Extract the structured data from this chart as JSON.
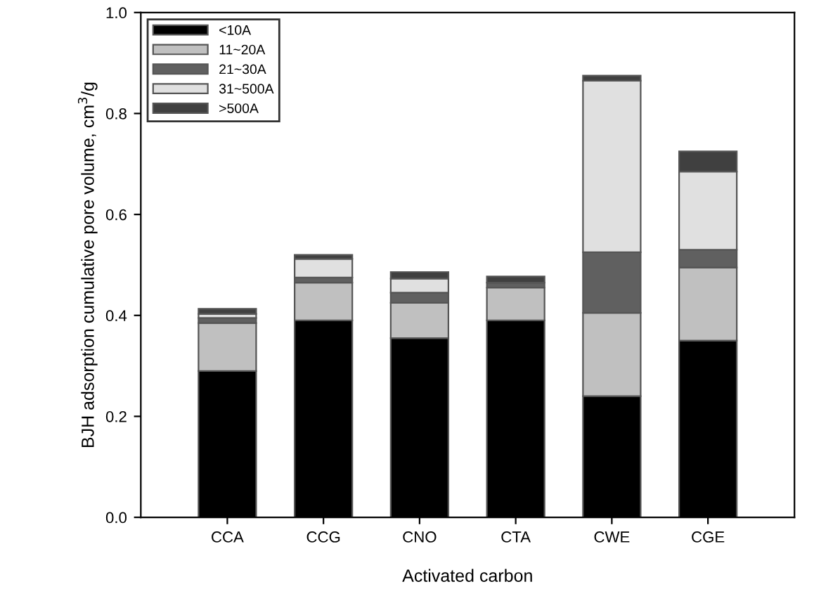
{
  "chart_data": {
    "type": "bar",
    "stacked": true,
    "xlabel": "Activated carbon",
    "ylabel": "BJH adsorption cumulative pore volume, cm$^{3}$/g",
    "categories": [
      "CCA",
      "CCG",
      "CNO",
      "CTA",
      "CWE",
      "CGE"
    ],
    "series": [
      {
        "name": "<10A",
        "color": "#000000",
        "values": [
          0.29,
          0.39,
          0.355,
          0.39,
          0.24,
          0.35
        ]
      },
      {
        "name": "11~20A",
        "color": "#c0c0c0",
        "values": [
          0.095,
          0.075,
          0.07,
          0.065,
          0.165,
          0.145
        ]
      },
      {
        "name": "21~30A",
        "color": "#606060",
        "values": [
          0.01,
          0.01,
          0.02,
          0.01,
          0.12,
          0.035
        ]
      },
      {
        "name": "31~500A",
        "color": "#e0e0e0",
        "values": [
          0.008,
          0.037,
          0.028,
          null,
          0.34,
          0.155
        ]
      },
      {
        "name": ">500A",
        "color": "#404040",
        "values": [
          0.01,
          0.008,
          0.013,
          0.012,
          0.01,
          0.04
        ]
      }
    ],
    "ylim": [
      0,
      1.0
    ],
    "yticks": [
      {
        "value": 0,
        "label": "0.0"
      },
      0.2,
      0.4,
      0.6,
      0.8,
      {
        "value": 1.0,
        "label": "1.0"
      }
    ],
    "grid": false,
    "legend": "top left"
  }
}
